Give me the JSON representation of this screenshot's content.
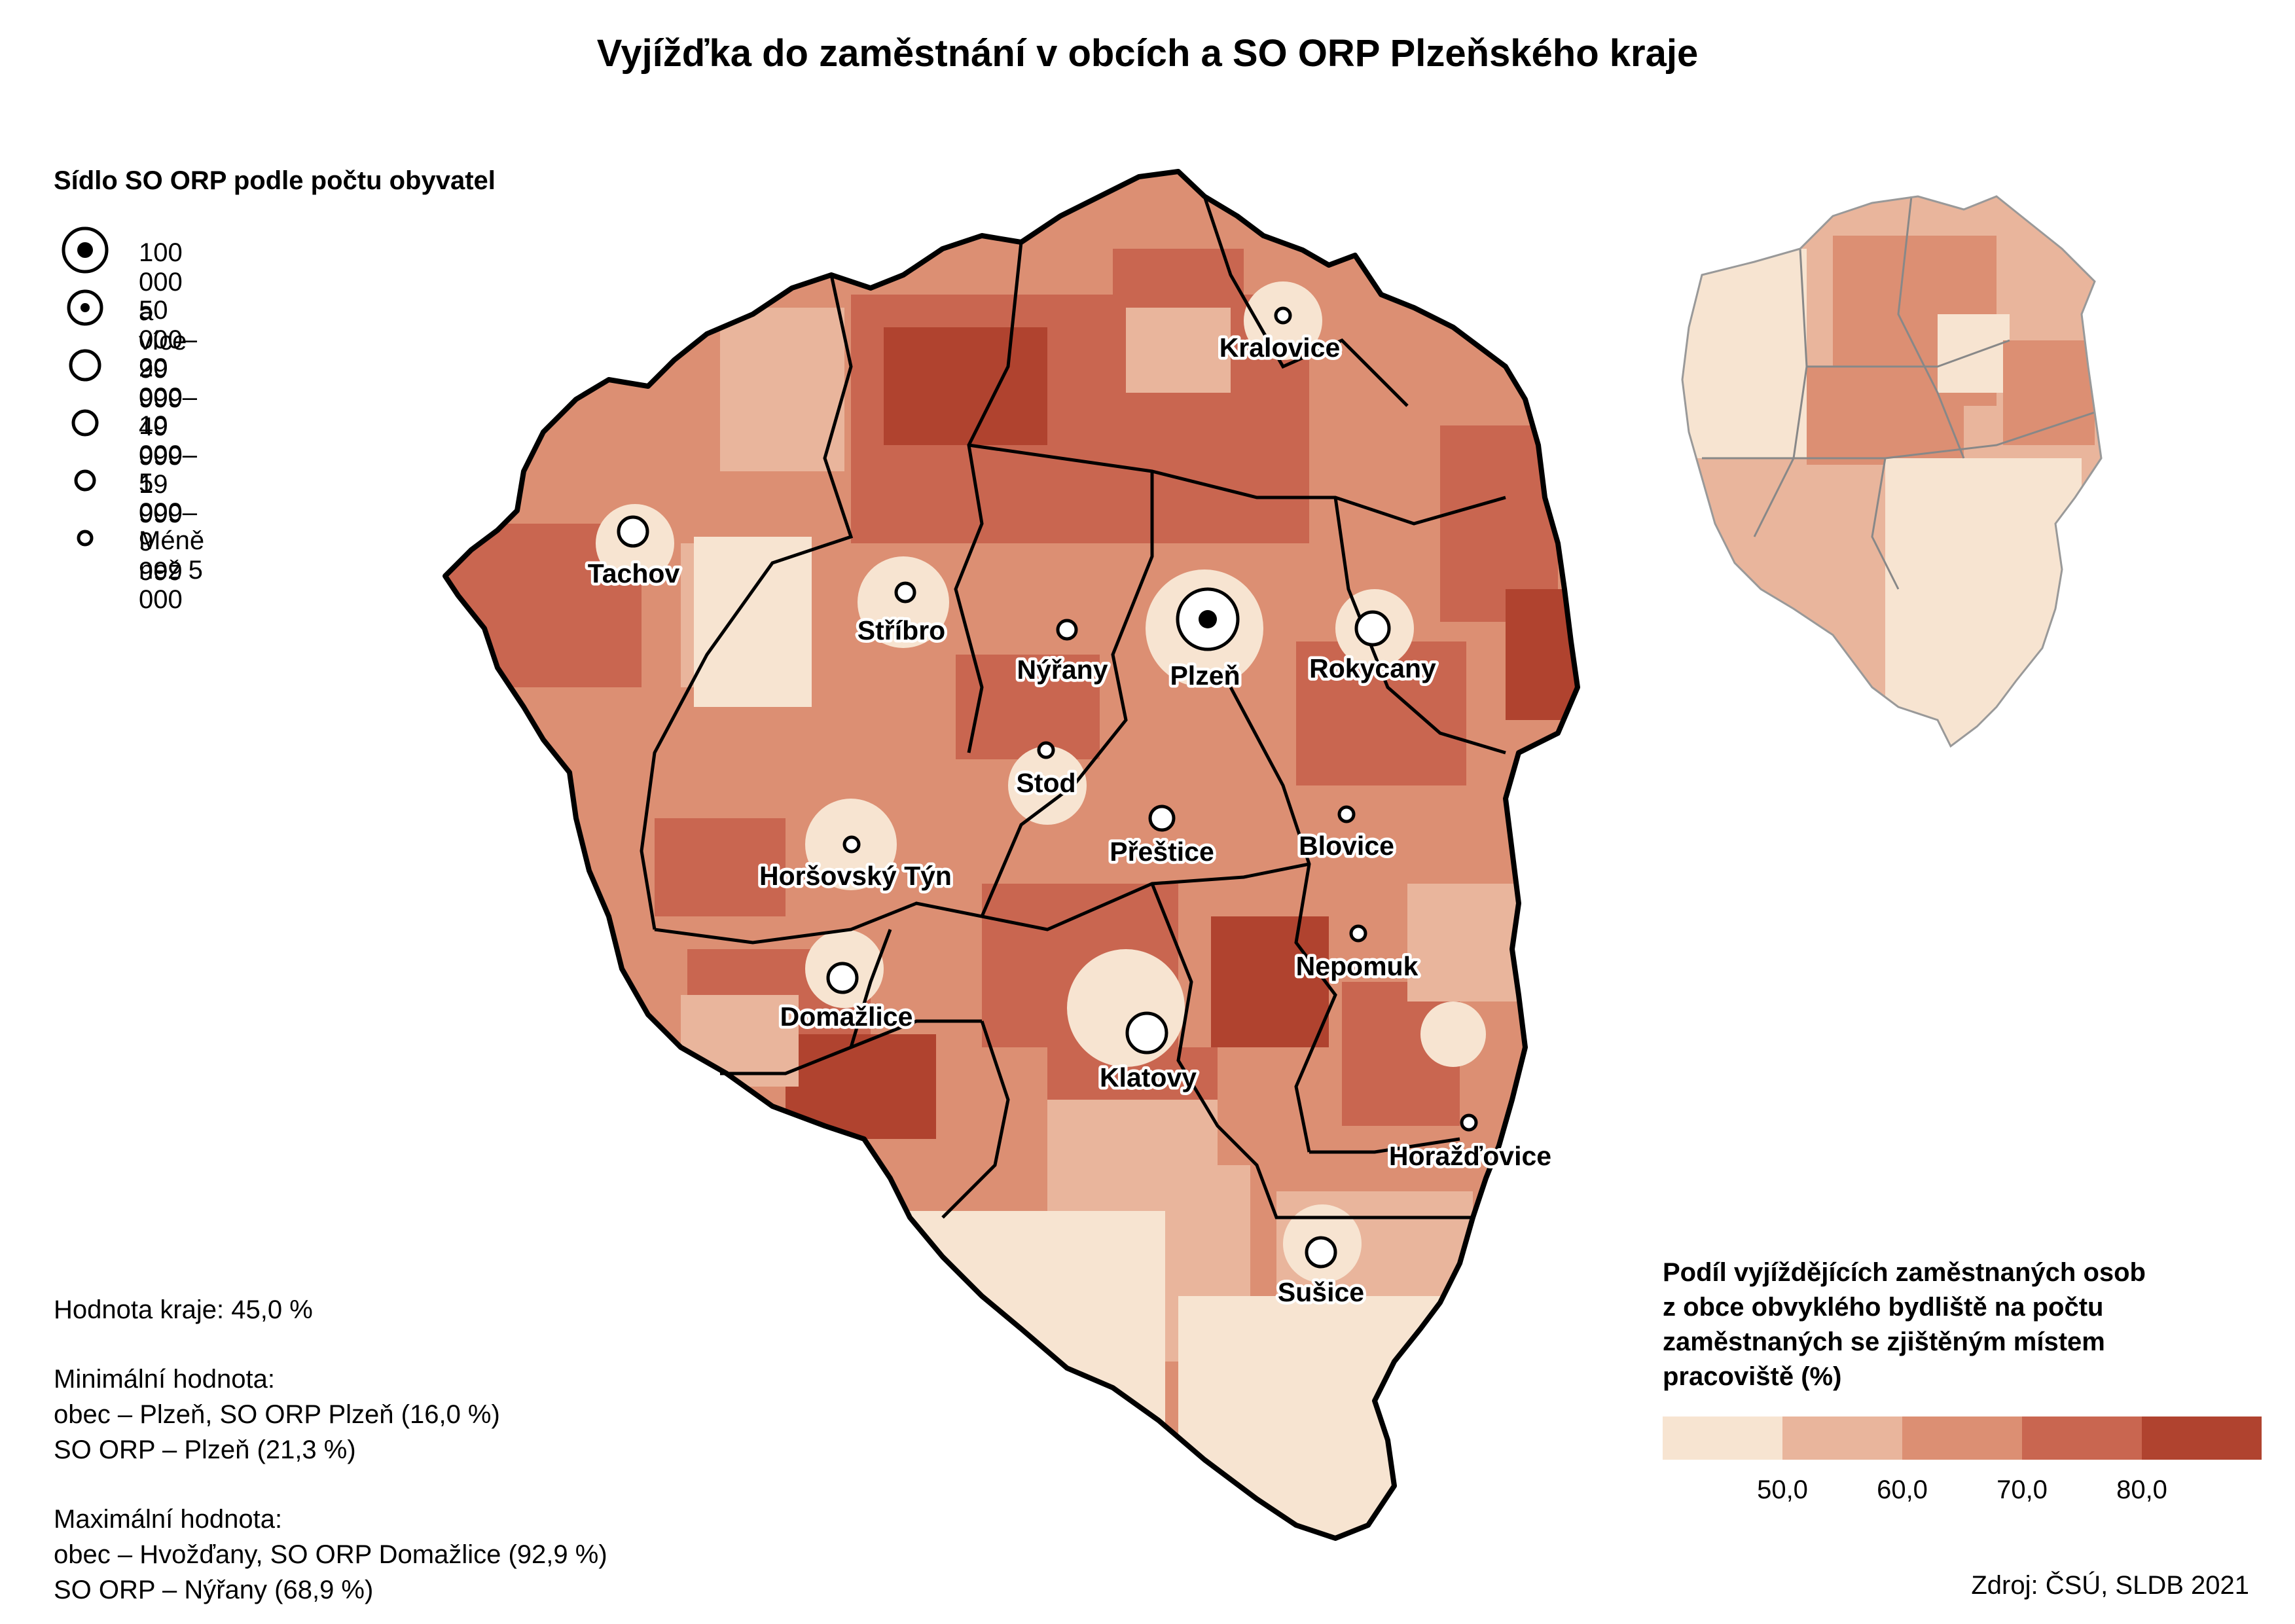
{
  "title": "Vyjížďka do zaměstnání v obcích a SO ORP Plzeňského kraje",
  "size_legend": {
    "heading": "Sídlo SO ORP podle počtu obyvatel",
    "classes": [
      {
        "label": "100 000 a více"
      },
      {
        "label": "50 000–99 999"
      },
      {
        "label": "20 000–49 999"
      },
      {
        "label": "10 000–19 999"
      },
      {
        "label": "5 000–9 999"
      },
      {
        "label": "Méně než 5 000"
      }
    ]
  },
  "towns": [
    {
      "name": "Kralovice"
    },
    {
      "name": "Tachov"
    },
    {
      "name": "Stříbro"
    },
    {
      "name": "Nýřany"
    },
    {
      "name": "Plzeň"
    },
    {
      "name": "Rokycany"
    },
    {
      "name": "Stod"
    },
    {
      "name": "Přeštice"
    },
    {
      "name": "Blovice"
    },
    {
      "name": "Horšovský Týn"
    },
    {
      "name": "Nepomuk"
    },
    {
      "name": "Domažlice"
    },
    {
      "name": "Klatovy"
    },
    {
      "name": "Horažďovice"
    },
    {
      "name": "Sušice"
    }
  ],
  "stats": {
    "region_value": "Hodnota kraje: 45,0 %",
    "min_heading": "Minimální hodnota:",
    "min_municipality": "obec – Plzeň, SO ORP Plzeň (16,0 %)",
    "min_orp": "SO ORP – Plzeň (21,3 %)",
    "max_heading": "Maximální hodnota:",
    "max_municipality": "obec – Hvožďany, SO ORP Domažlice (92,9 %)",
    "max_orp": "SO ORP – Nýřany (68,9 %)"
  },
  "choropleth_legend": {
    "heading_lines": [
      "Podíl vyjíždějících zaměstnaných osob",
      "z obce obvyklého bydliště na počtu",
      "zaměstnaných se zjištěným místem",
      "pracoviště (%)"
    ],
    "breaks": [
      "50,0",
      "60,0",
      "70,0",
      "80,0"
    ],
    "colors": [
      "#f7e4d1",
      "#e9b59c",
      "#dc8f73",
      "#c96650",
      "#b0432f"
    ]
  },
  "source": "Zdroj: ČSÚ, SLDB 2021"
}
